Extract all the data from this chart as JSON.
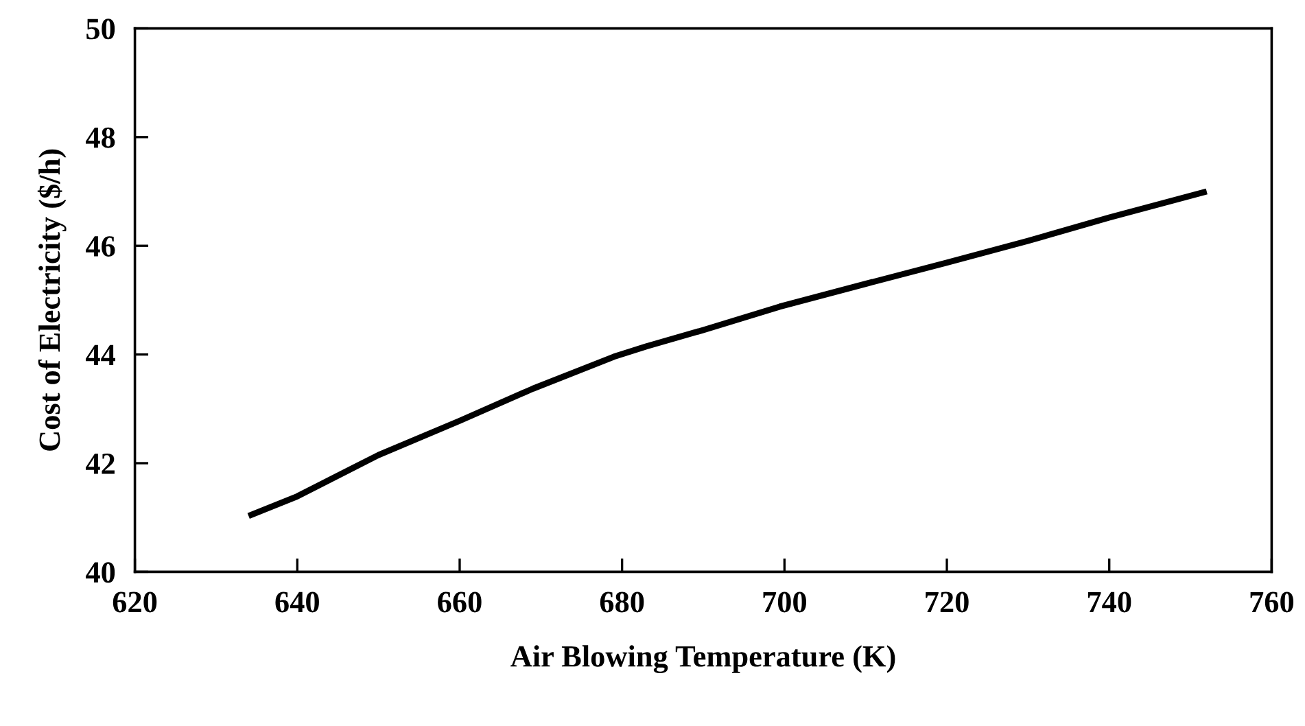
{
  "chart_data": {
    "type": "line",
    "xlabel": "Air Blowing Temperature (K)",
    "ylabel": "Cost of Electricity ($/h)",
    "series": [
      {
        "color": "#000000",
        "x": [
          634,
          640,
          650,
          660,
          669,
          679,
          683,
          690,
          699.4,
          710,
          720,
          730,
          740,
          752
        ],
        "values": [
          41.03,
          41.39,
          42.15,
          42.78,
          43.37,
          43.96,
          44.15,
          44.45,
          44.88,
          45.3,
          45.69,
          46.09,
          46.52,
          47.0
        ]
      }
    ],
    "xlim": [
      620,
      760
    ],
    "xticks": [
      620,
      640,
      660,
      680,
      700,
      720,
      740,
      760
    ],
    "ylim": [
      40,
      50
    ],
    "yticks": [
      40,
      42,
      44,
      46,
      48,
      50
    ],
    "grid": false,
    "legend": false,
    "marker": "none",
    "line_style": "solid"
  }
}
